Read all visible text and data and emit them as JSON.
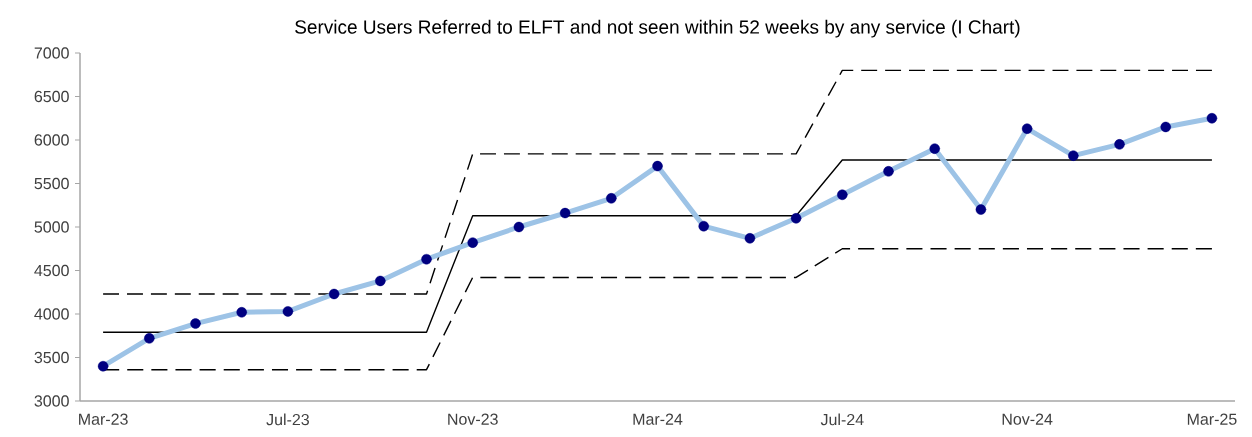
{
  "chart_data": {
    "type": "line",
    "title": "Service Users Referred to ELFT and not seen within 52 weeks by any service (I Chart)",
    "categories": [
      "Mar-23",
      null,
      null,
      null,
      "Jul-23",
      null,
      null,
      null,
      "Nov-23",
      null,
      null,
      null,
      "Mar-24",
      null,
      null,
      null,
      "Jul-24",
      null,
      null,
      null,
      "Nov-24",
      null,
      null,
      null,
      "Mar-25"
    ],
    "ylim": [
      3000,
      7000
    ],
    "yticks": [
      3000,
      3500,
      4000,
      4500,
      5000,
      5500,
      6000,
      6500,
      7000
    ],
    "grid": false,
    "legend": false,
    "series": [
      {
        "color": "#000000",
        "line_style": "solid",
        "marker": "none",
        "values": [
          3790,
          3790,
          3790,
          3790,
          3790,
          3790,
          3790,
          3790,
          5130,
          5130,
          5130,
          5130,
          5130,
          5130,
          5130,
          5130,
          5770,
          5770,
          5770,
          5770,
          5770,
          5770,
          5770,
          5770,
          5770
        ]
      },
      {
        "color": "#000000",
        "line_style": "dashed",
        "marker": "none",
        "values": [
          4230,
          4230,
          4230,
          4230,
          4230,
          4230,
          4230,
          4230,
          5840,
          5840,
          5840,
          5840,
          5840,
          5840,
          5840,
          5840,
          6800,
          6800,
          6800,
          6800,
          6800,
          6800,
          6800,
          6800,
          6800
        ]
      },
      {
        "color": "#000000",
        "line_style": "dashed",
        "marker": "none",
        "values": [
          3360,
          3360,
          3360,
          3360,
          3360,
          3360,
          3360,
          3360,
          4420,
          4420,
          4420,
          4420,
          4420,
          4420,
          4420,
          4420,
          4750,
          4750,
          4750,
          4750,
          4750,
          4750,
          4750,
          4750,
          4750
        ]
      },
      {
        "color": "#9dc3e6",
        "marker": "none",
        "values": [
          3400,
          3720,
          3890,
          4020,
          4030,
          4230,
          4380,
          4630,
          4820,
          5000,
          5160,
          5330,
          5700,
          5010,
          4870,
          5100,
          5370,
          5640,
          5900,
          5200,
          6130,
          5820,
          5950,
          6150,
          6250
        ]
      },
      {
        "type": "scatter",
        "color": "#000080",
        "marker": "circle",
        "values": [
          3400,
          3720,
          3890,
          4020,
          4030,
          4230,
          4380,
          4630,
          4820,
          5000,
          5160,
          5330,
          5700,
          5010,
          4870,
          5100,
          5370,
          5640,
          5900,
          5200,
          6130,
          5820,
          5950,
          6150,
          6250
        ]
      }
    ]
  }
}
